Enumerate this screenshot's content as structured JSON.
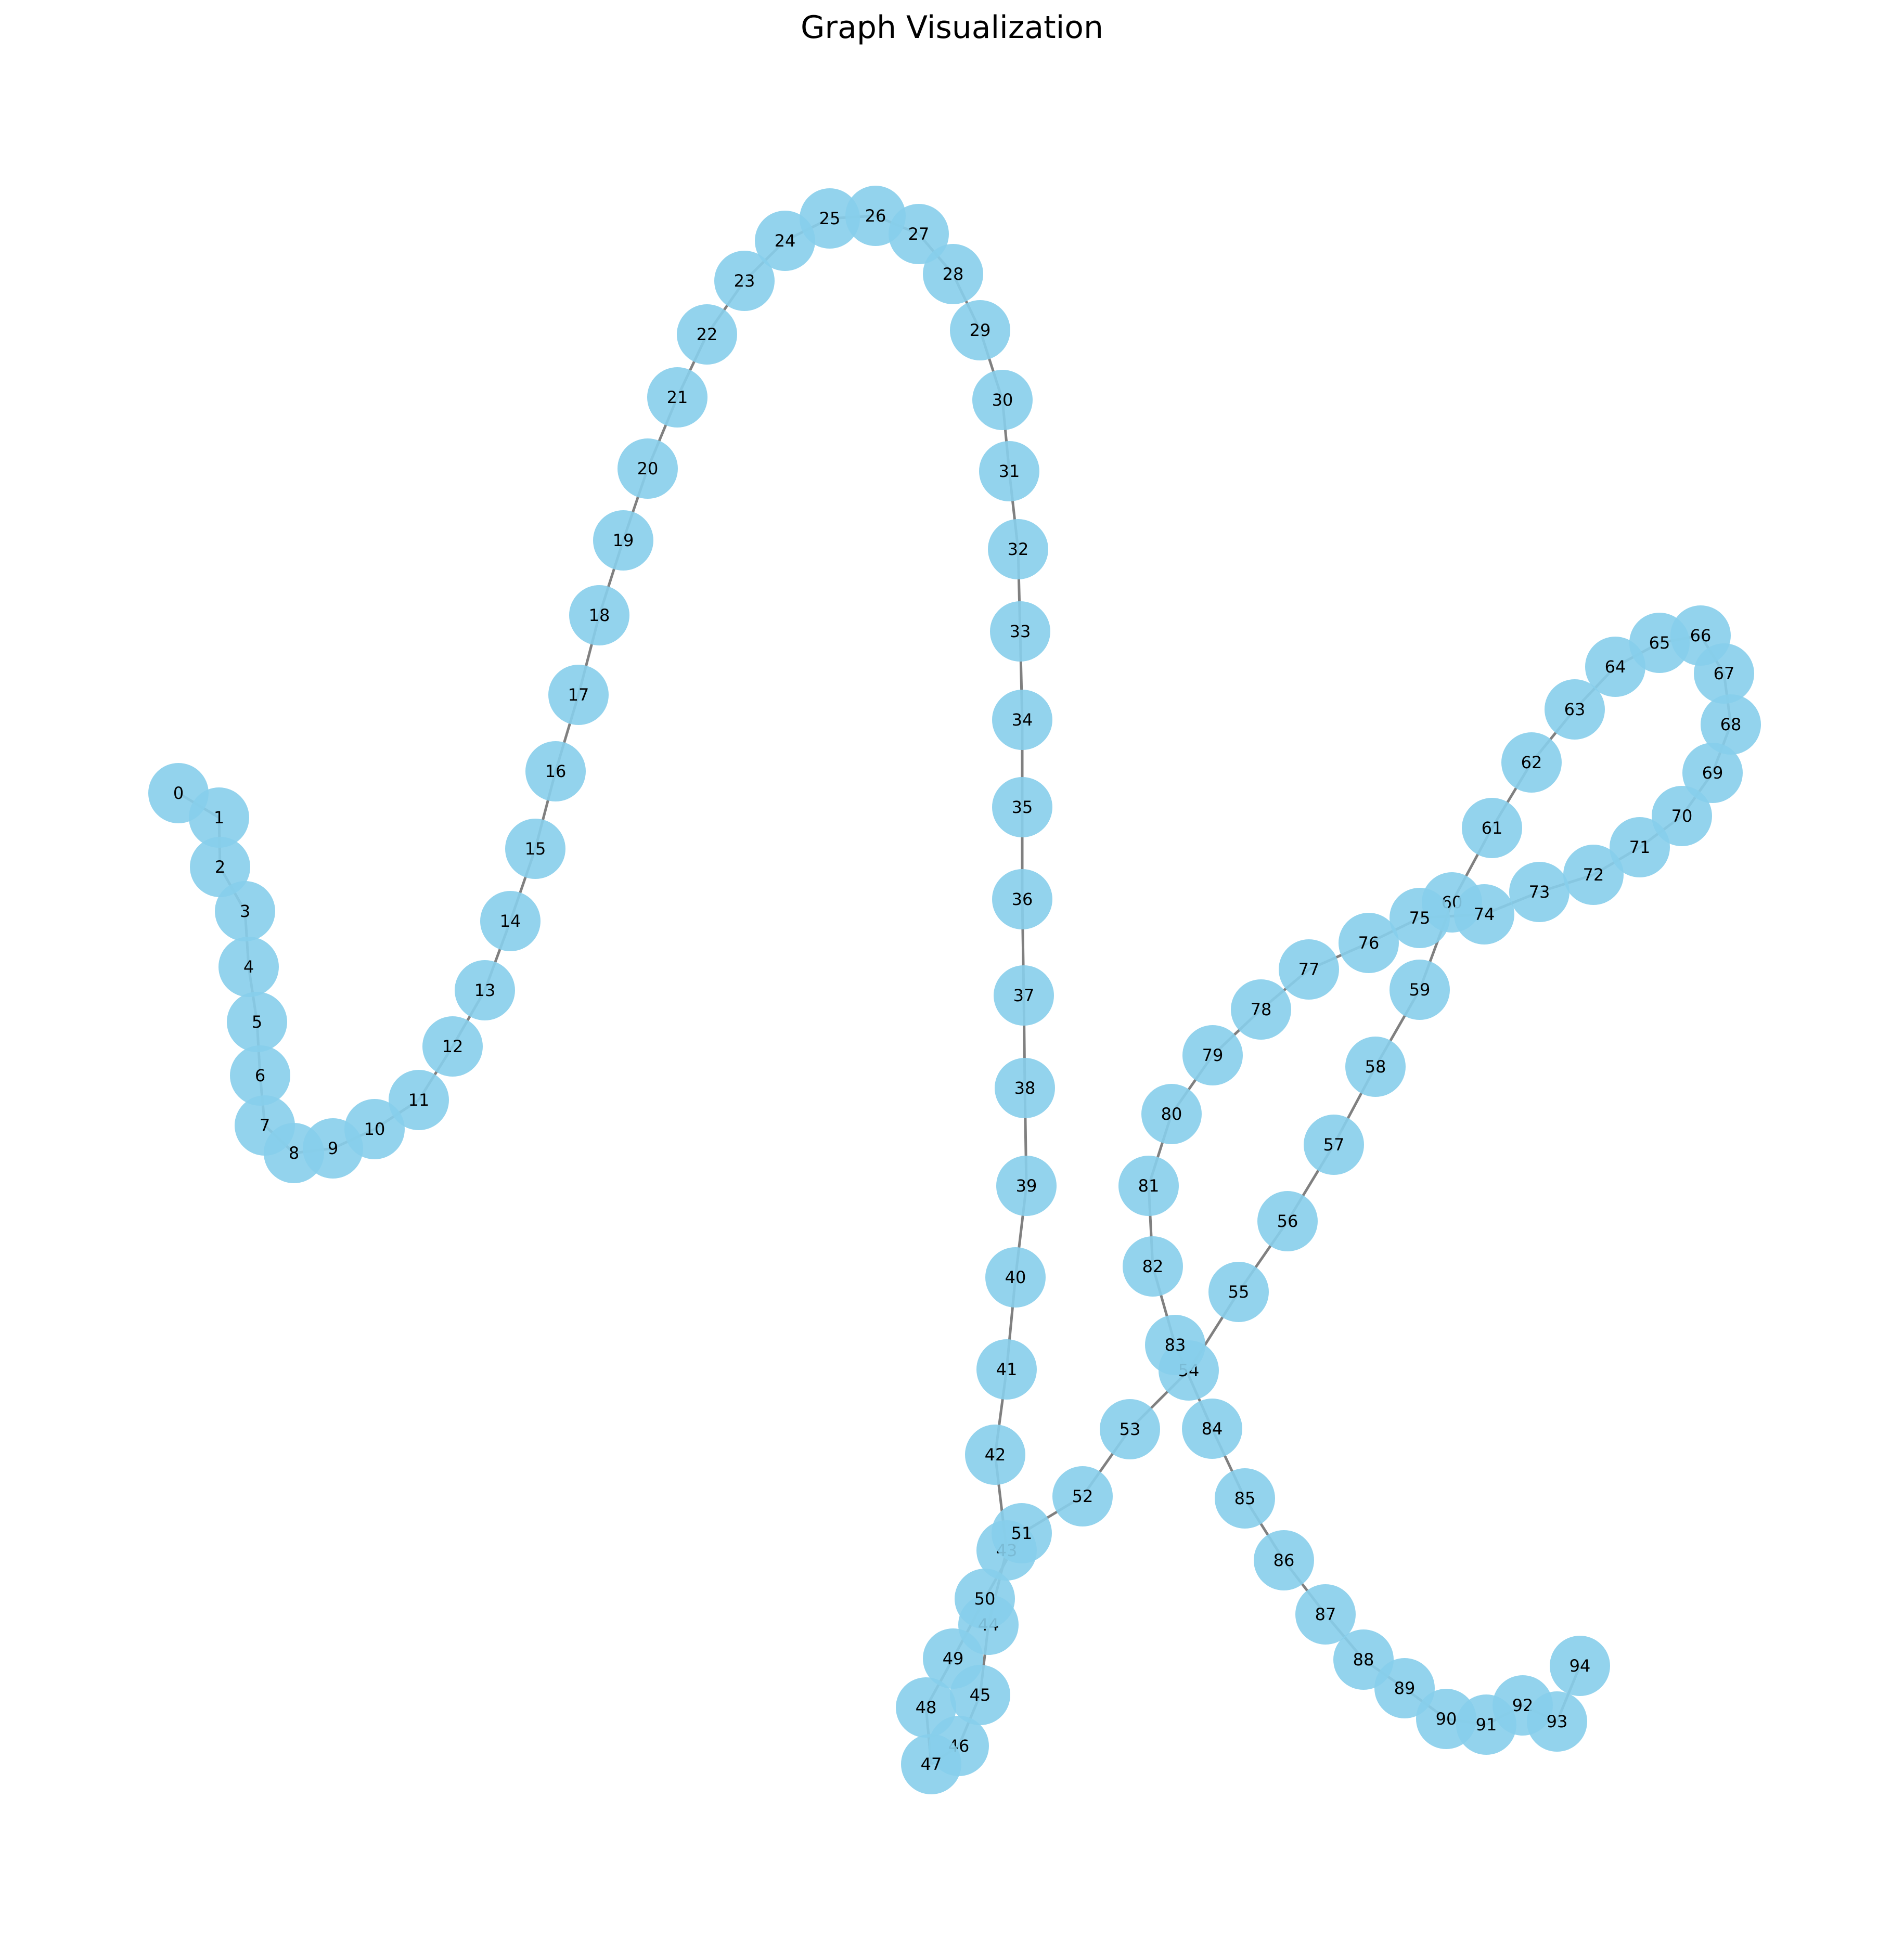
{
  "title": "Graph Visualization",
  "colors": {
    "node_fill": "#87ceeb",
    "edge": "#808080",
    "label": "#000000"
  },
  "graph": {
    "type": "path",
    "nodes": [
      "0",
      "1",
      "2",
      "3",
      "4",
      "5",
      "6",
      "7",
      "8",
      "9",
      "10",
      "11",
      "12",
      "13",
      "14",
      "15",
      "16",
      "17",
      "18",
      "19",
      "20",
      "21",
      "22",
      "23",
      "24",
      "25",
      "26",
      "27",
      "28",
      "29",
      "30",
      "31",
      "32",
      "33",
      "34",
      "35",
      "36",
      "37",
      "38",
      "39",
      "40",
      "41",
      "42",
      "43",
      "44",
      "45",
      "46",
      "47",
      "48",
      "49",
      "50",
      "51",
      "52",
      "53",
      "54",
      "55",
      "56",
      "57",
      "58",
      "59",
      "60",
      "61",
      "62",
      "63",
      "64",
      "65",
      "66",
      "67",
      "68",
      "69",
      "70",
      "71",
      "72",
      "73",
      "74",
      "75",
      "76",
      "77",
      "78",
      "79",
      "80",
      "81",
      "82",
      "83",
      "84",
      "85",
      "86",
      "87",
      "88",
      "89",
      "90",
      "91",
      "92",
      "93",
      "94"
    ],
    "edges": [
      [
        "0",
        "1"
      ],
      [
        "1",
        "2"
      ],
      [
        "2",
        "3"
      ],
      [
        "3",
        "4"
      ],
      [
        "4",
        "5"
      ],
      [
        "5",
        "6"
      ],
      [
        "6",
        "7"
      ],
      [
        "7",
        "8"
      ],
      [
        "8",
        "9"
      ],
      [
        "9",
        "10"
      ],
      [
        "10",
        "11"
      ],
      [
        "11",
        "12"
      ],
      [
        "12",
        "13"
      ],
      [
        "13",
        "14"
      ],
      [
        "14",
        "15"
      ],
      [
        "15",
        "16"
      ],
      [
        "16",
        "17"
      ],
      [
        "17",
        "18"
      ],
      [
        "18",
        "19"
      ],
      [
        "19",
        "20"
      ],
      [
        "20",
        "21"
      ],
      [
        "21",
        "22"
      ],
      [
        "22",
        "23"
      ],
      [
        "23",
        "24"
      ],
      [
        "24",
        "25"
      ],
      [
        "25",
        "26"
      ],
      [
        "26",
        "27"
      ],
      [
        "27",
        "28"
      ],
      [
        "28",
        "29"
      ],
      [
        "29",
        "30"
      ],
      [
        "30",
        "31"
      ],
      [
        "31",
        "32"
      ],
      [
        "32",
        "33"
      ],
      [
        "33",
        "34"
      ],
      [
        "34",
        "35"
      ],
      [
        "35",
        "36"
      ],
      [
        "36",
        "37"
      ],
      [
        "37",
        "38"
      ],
      [
        "38",
        "39"
      ],
      [
        "39",
        "40"
      ],
      [
        "40",
        "41"
      ],
      [
        "41",
        "42"
      ],
      [
        "42",
        "43"
      ],
      [
        "43",
        "44"
      ],
      [
        "44",
        "45"
      ],
      [
        "45",
        "46"
      ],
      [
        "46",
        "47"
      ],
      [
        "47",
        "48"
      ],
      [
        "48",
        "49"
      ],
      [
        "49",
        "50"
      ],
      [
        "50",
        "51"
      ],
      [
        "51",
        "52"
      ],
      [
        "52",
        "53"
      ],
      [
        "53",
        "54"
      ],
      [
        "54",
        "55"
      ],
      [
        "55",
        "56"
      ],
      [
        "56",
        "57"
      ],
      [
        "57",
        "58"
      ],
      [
        "58",
        "59"
      ],
      [
        "59",
        "60"
      ],
      [
        "60",
        "61"
      ],
      [
        "61",
        "62"
      ],
      [
        "62",
        "63"
      ],
      [
        "63",
        "64"
      ],
      [
        "64",
        "65"
      ],
      [
        "65",
        "66"
      ],
      [
        "66",
        "67"
      ],
      [
        "67",
        "68"
      ],
      [
        "68",
        "69"
      ],
      [
        "69",
        "70"
      ],
      [
        "70",
        "71"
      ],
      [
        "71",
        "72"
      ],
      [
        "72",
        "73"
      ],
      [
        "73",
        "74"
      ],
      [
        "74",
        "75"
      ],
      [
        "75",
        "76"
      ],
      [
        "76",
        "77"
      ],
      [
        "77",
        "78"
      ],
      [
        "78",
        "79"
      ],
      [
        "79",
        "80"
      ],
      [
        "80",
        "81"
      ],
      [
        "81",
        "82"
      ],
      [
        "82",
        "83"
      ],
      [
        "83",
        "84"
      ],
      [
        "84",
        "85"
      ],
      [
        "85",
        "86"
      ],
      [
        "86",
        "87"
      ],
      [
        "87",
        "88"
      ],
      [
        "88",
        "89"
      ],
      [
        "89",
        "90"
      ],
      [
        "90",
        "91"
      ],
      [
        "91",
        "92"
      ],
      [
        "92",
        "93"
      ],
      [
        "93",
        "94"
      ]
    ]
  }
}
